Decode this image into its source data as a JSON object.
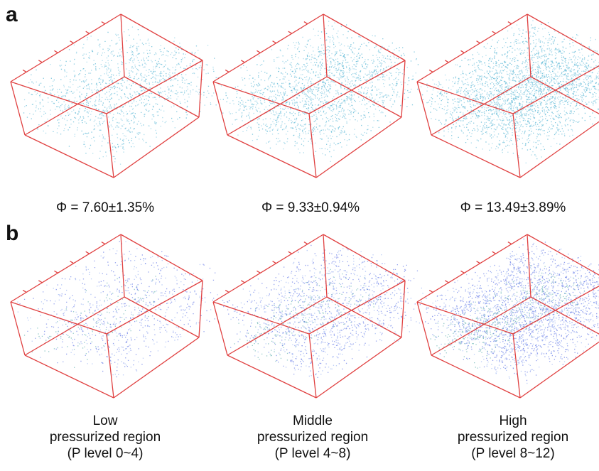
{
  "panels": [
    {
      "label": "a",
      "captions": [
        "Φ = 7.60±1.35%",
        "Φ = 9.33±0.94%",
        "Φ = 13.49±3.89%"
      ]
    },
    {
      "label": "b",
      "captions": [
        [
          "Low",
          "pressurized region",
          "(P level 0~4)"
        ],
        [
          "Middle",
          "pressurized region",
          "(P level 4~8)"
        ],
        [
          "High",
          "pressurized region",
          "(P level 8~12)"
        ]
      ]
    }
  ]
}
